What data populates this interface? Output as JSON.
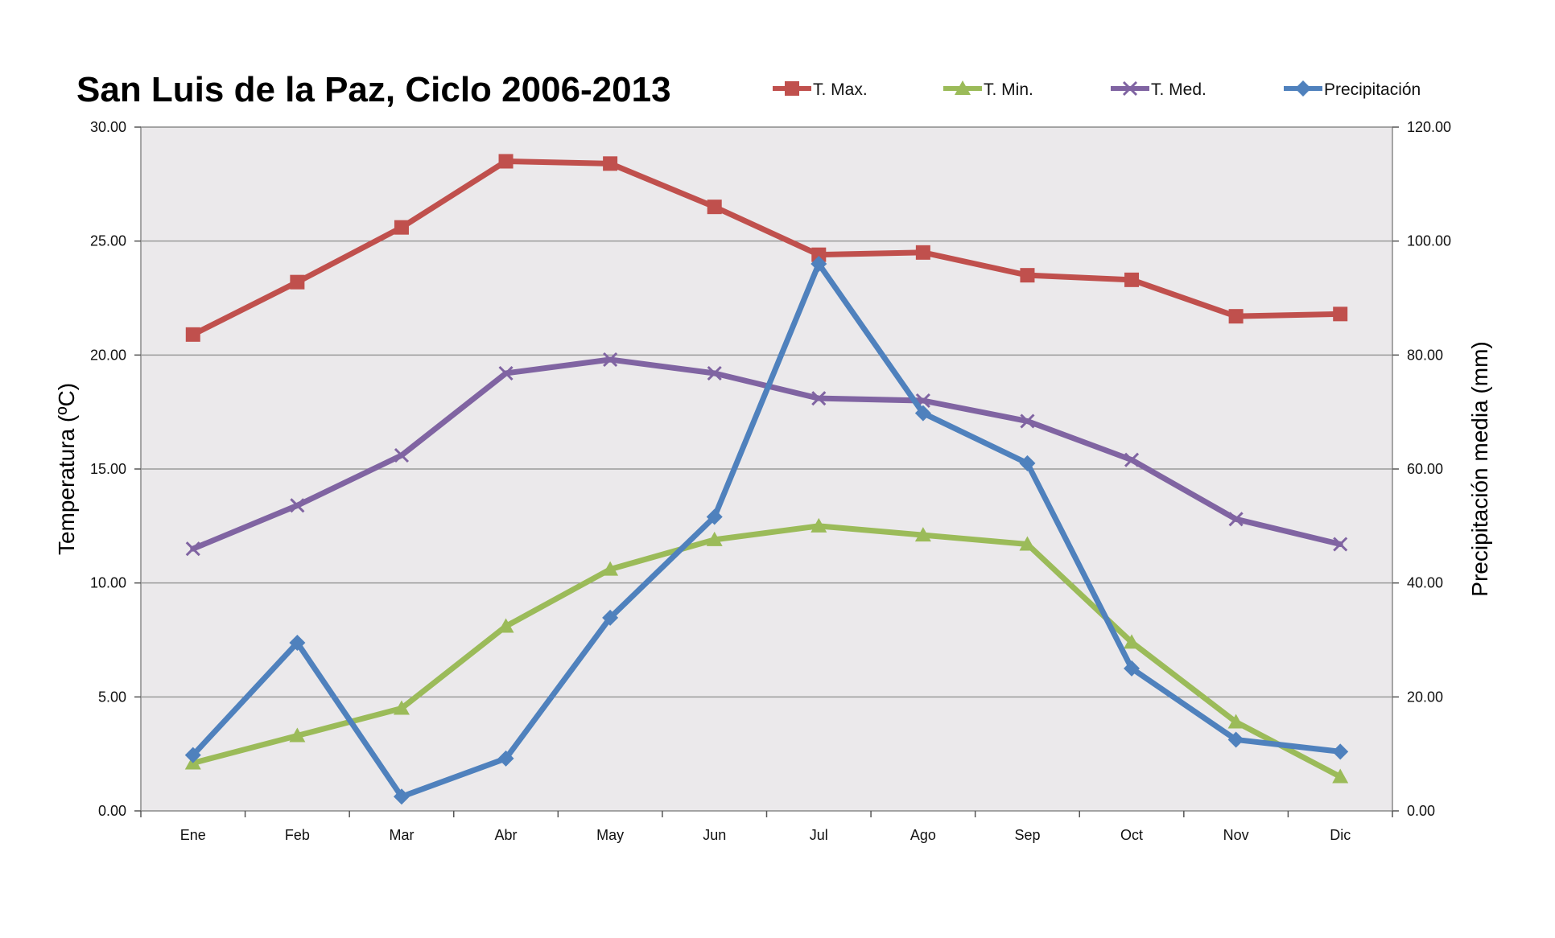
{
  "chart_data": {
    "type": "line",
    "title": "San Luis de la Paz, Ciclo 2006-2013",
    "categories": [
      "Ene",
      "Feb",
      "Mar",
      "Abr",
      "May",
      "Jun",
      "Jul",
      "Ago",
      "Sep",
      "Oct",
      "Nov",
      "Dic"
    ],
    "y_left": {
      "label": "Temperatura (ºC)",
      "range": [
        0,
        30
      ],
      "ticks": [
        "0.00",
        "5.00",
        "10.00",
        "15.00",
        "20.00",
        "25.00",
        "30.00"
      ]
    },
    "y_right": {
      "label": "Precipitación media (mm)",
      "range": [
        0,
        120
      ],
      "ticks": [
        "0.00",
        "20.00",
        "40.00",
        "60.00",
        "80.00",
        "100.00",
        "120.00"
      ]
    },
    "grid": true,
    "legend_position": "top-right",
    "series": [
      {
        "name": "T. Max.",
        "axis": "left",
        "color": "#c0504d",
        "marker": "square",
        "values": [
          20.9,
          23.2,
          25.6,
          28.5,
          28.4,
          26.5,
          24.4,
          24.5,
          23.5,
          23.3,
          21.7,
          21.8
        ]
      },
      {
        "name": "T. Min.",
        "axis": "left",
        "color": "#9bbb59",
        "marker": "triangle",
        "values": [
          2.1,
          3.3,
          4.5,
          8.1,
          10.6,
          11.9,
          12.5,
          12.1,
          11.7,
          7.4,
          3.9,
          1.5
        ]
      },
      {
        "name": "T. Med.",
        "axis": "left",
        "color": "#8064a2",
        "marker": "x",
        "values": [
          11.5,
          13.4,
          15.6,
          19.2,
          19.8,
          19.2,
          18.1,
          18.0,
          17.1,
          15.4,
          12.8,
          11.7
        ]
      },
      {
        "name": "Precipitación",
        "axis": "right",
        "color": "#4f81bd",
        "marker": "diamond",
        "values": [
          9.8,
          29.5,
          2.5,
          9.2,
          33.9,
          51.6,
          96.0,
          69.8,
          61.0,
          25.0,
          12.5,
          10.4
        ]
      }
    ]
  }
}
